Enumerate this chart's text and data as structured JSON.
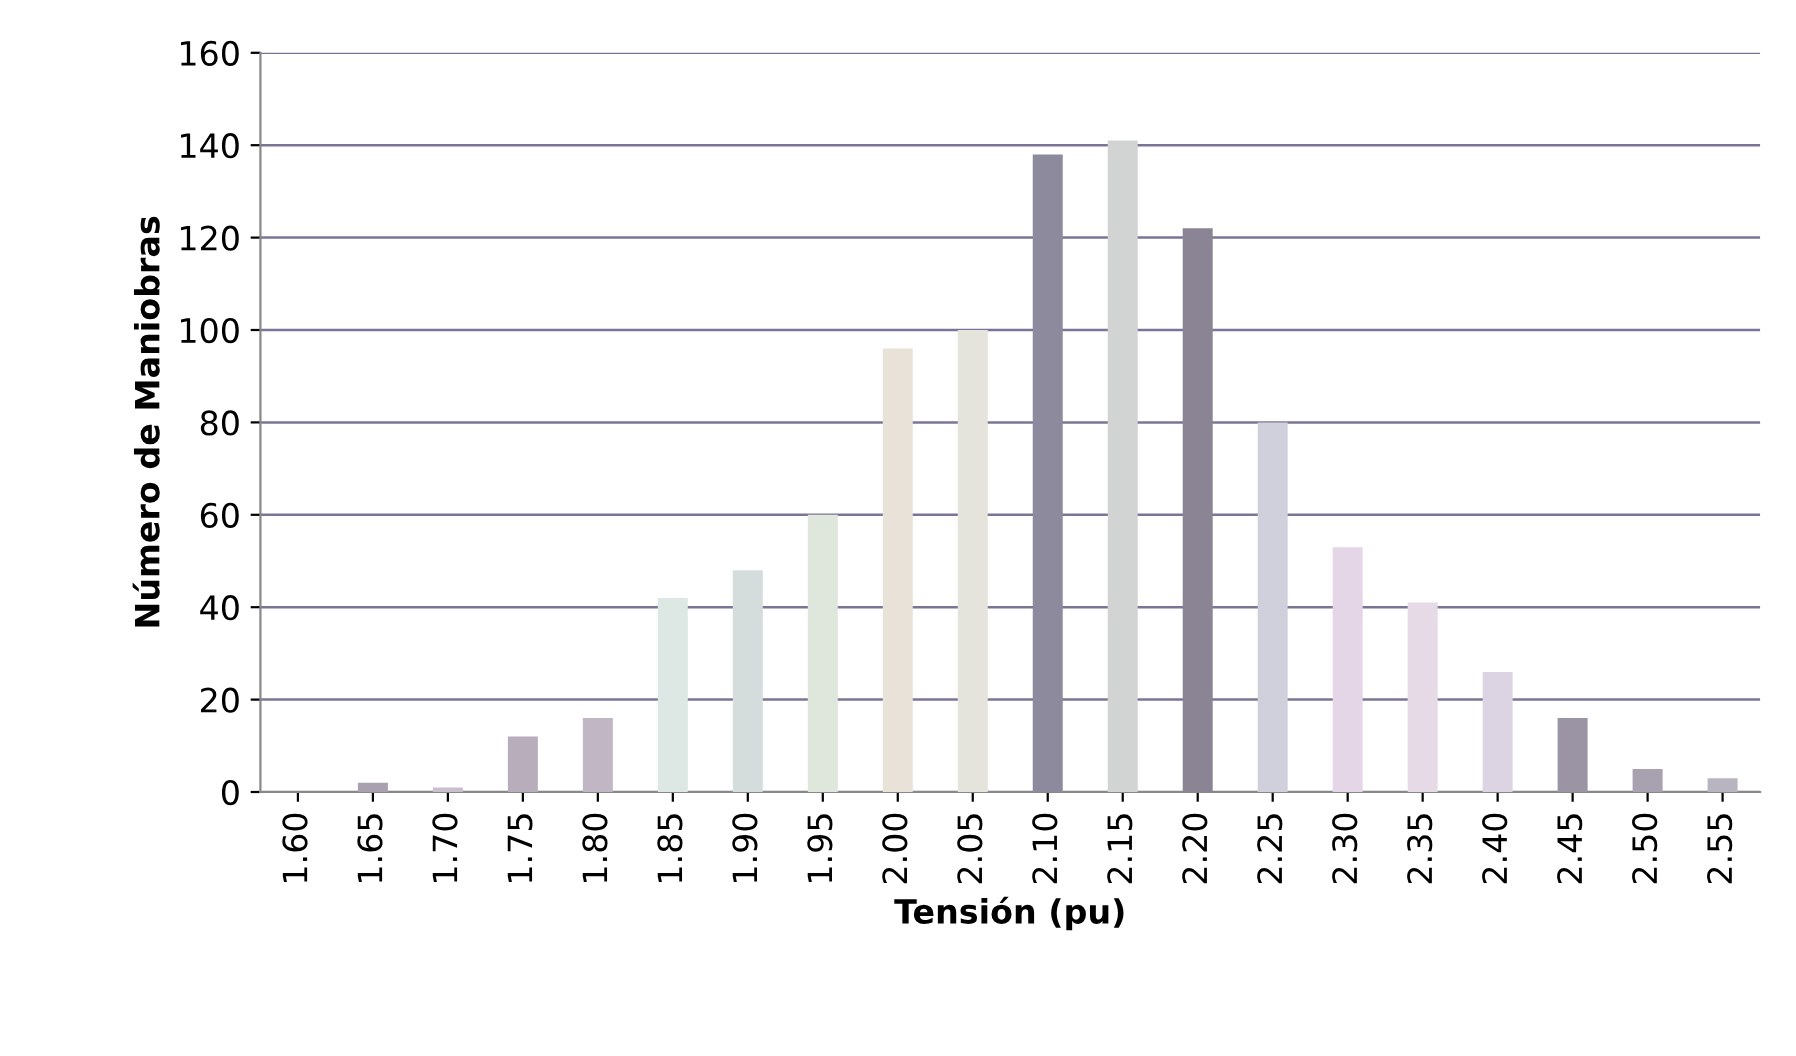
{
  "chart_data": {
    "type": "bar",
    "xlabel": "Tensión (pu)",
    "ylabel": "Número de Maniobras",
    "categories": [
      "1.60",
      "1.65",
      "1.70",
      "1.75",
      "1.80",
      "1.85",
      "1.90",
      "1.95",
      "2.00",
      "2.05",
      "2.10",
      "2.15",
      "2.20",
      "2.25",
      "2.30",
      "2.35",
      "2.40",
      "2.45",
      "2.50",
      "2.55"
    ],
    "values": [
      0,
      2,
      1,
      12,
      16,
      42,
      48,
      60,
      96,
      100,
      138,
      141,
      122,
      80,
      53,
      41,
      26,
      16,
      5,
      3
    ],
    "colors": [
      "#b8b0c0",
      "#a9a0b0",
      "#c8c0cc",
      "#b8aebb",
      "#c0b6c4",
      "#dde8e4",
      "#d4dcdc",
      "#dfe6dc",
      "#e8e2d8",
      "#e4e4dc",
      "#8e8a9e",
      "#d2d4d4",
      "#8a8494",
      "#d0d0dc",
      "#e4d6e6",
      "#e6dae6",
      "#dcd4e2",
      "#9a94a4",
      "#a8a2b0",
      "#b8b4c0"
    ],
    "ylim": [
      0,
      160
    ],
    "yticks": [
      0,
      20,
      40,
      60,
      80,
      100,
      120,
      140,
      160
    ],
    "grid": "y"
  }
}
